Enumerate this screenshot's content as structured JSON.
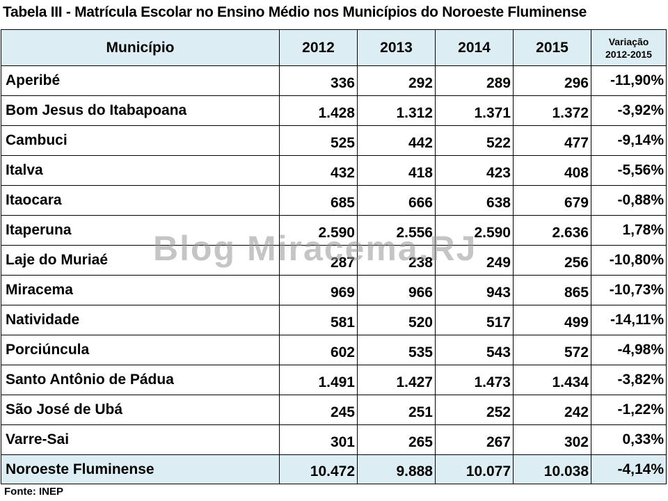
{
  "title": "Tabela III - Matrícula Escolar no Ensino Médio nos Municípios do Noroeste Fluminense",
  "source": "Fonte: INEP",
  "watermark": "Blog Miracema.RJ",
  "header_fill": "#dceef3",
  "chart_data": {
    "type": "table",
    "title": "Tabela III - Matrícula Escolar no Ensino Médio nos Municípios do Noroeste Fluminense",
    "columns": [
      "Município",
      "2012",
      "2013",
      "2014",
      "2015",
      "Variação",
      "2012-2015"
    ],
    "rows": [
      [
        "Aperibé",
        "336",
        "292",
        "289",
        "296",
        "-11,90%"
      ],
      [
        "Bom Jesus do Itabapoana",
        "1.428",
        "1.312",
        "1.371",
        "1.372",
        "-3,92%"
      ],
      [
        "Cambuci",
        "525",
        "442",
        "522",
        "477",
        "-9,14%"
      ],
      [
        "Italva",
        "432",
        "418",
        "423",
        "408",
        "-5,56%"
      ],
      [
        "Itaocara",
        "685",
        "666",
        "638",
        "679",
        "-0,88%"
      ],
      [
        "Itaperuna",
        "2.590",
        "2.556",
        "2.590",
        "2.636",
        "1,78%"
      ],
      [
        "Laje do Muriaé",
        "287",
        "238",
        "249",
        "256",
        "-10,80%"
      ],
      [
        "Miracema",
        "969",
        "966",
        "943",
        "865",
        "-10,73%"
      ],
      [
        "Natividade",
        "581",
        "520",
        "517",
        "499",
        "-14,11%"
      ],
      [
        "Porciúncula",
        "602",
        "535",
        "543",
        "572",
        "-4,98%"
      ],
      [
        "Santo Antônio de Pádua",
        "1.491",
        "1.427",
        "1.473",
        "1.434",
        "-3,82%"
      ],
      [
        "São José de Ubá",
        "245",
        "251",
        "252",
        "242",
        "-1,22%"
      ],
      [
        "Varre-Sai",
        "301",
        "265",
        "267",
        "302",
        "0,33%"
      ]
    ],
    "total": [
      "Noroeste Fluminense",
      "10.472",
      "9.888",
      "10.077",
      "10.038",
      "-4,14%"
    ]
  }
}
